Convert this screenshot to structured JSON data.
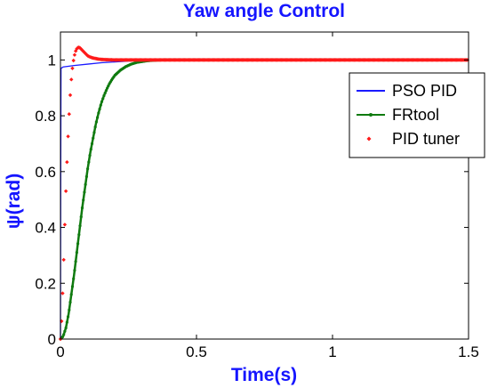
{
  "colors": {
    "title": "#1515ff",
    "axis_label": "#1515ff",
    "pso": "#1a1aff",
    "frtool": "#0f7a0f",
    "pid": "#ff1a1a"
  },
  "chart_data": {
    "type": "line",
    "title": "Yaw angle Control",
    "xlabel": "Time(s)",
    "ylabel": "ψ(rad)",
    "xlim": [
      0,
      1.5
    ],
    "ylim": [
      0,
      1.1
    ],
    "xticks": [
      "0",
      "0.5",
      "1",
      "1.5"
    ],
    "yticks": [
      "0",
      "0.2",
      "0.4",
      "0.6",
      "0.8",
      "1"
    ],
    "grid": false,
    "legend_position": "top-right",
    "series": [
      {
        "name": "PSO PID",
        "style": "line",
        "x": [
          0,
          0.001,
          0.002,
          0.01,
          0.05,
          0.1,
          0.15,
          0.2,
          0.25,
          0.3,
          0.32,
          0.35,
          0.4,
          0.5,
          0.6,
          0.8,
          1.0,
          1.2,
          1.5
        ],
        "y": [
          0,
          0.6,
          0.97,
          0.975,
          0.98,
          0.985,
          0.99,
          0.993,
          0.996,
          0.999,
          1.0,
          1.0,
          1.0,
          1.0,
          1.0,
          1.0,
          1.0,
          1.0,
          1.0
        ]
      },
      {
        "name": "FRtool",
        "style": "line-dots",
        "x": [
          0,
          0.01,
          0.02,
          0.03,
          0.04,
          0.05,
          0.06,
          0.07,
          0.08,
          0.09,
          0.1,
          0.11,
          0.12,
          0.13,
          0.14,
          0.15,
          0.16,
          0.17,
          0.18,
          0.19,
          0.2,
          0.22,
          0.24,
          0.26,
          0.28,
          0.3,
          0.32,
          0.35,
          0.38,
          0.42,
          0.46,
          0.5,
          0.6,
          0.7,
          0.8,
          0.9,
          1.0,
          1.1,
          1.2,
          1.3,
          1.4,
          1.5
        ],
        "y": [
          0,
          0.01,
          0.04,
          0.09,
          0.16,
          0.23,
          0.31,
          0.39,
          0.47,
          0.54,
          0.61,
          0.67,
          0.72,
          0.77,
          0.81,
          0.845,
          0.872,
          0.895,
          0.915,
          0.931,
          0.945,
          0.963,
          0.976,
          0.985,
          0.991,
          0.994,
          0.997,
          0.999,
          1.0,
          1.0,
          1.0,
          1.0,
          1.0,
          1.0,
          1.0,
          1.0,
          1.0,
          1.0,
          1.0,
          1.0,
          1.0,
          1.0
        ]
      },
      {
        "name": "PID tuner",
        "style": "markers",
        "x": [
          0,
          0.005,
          0.01,
          0.015,
          0.02,
          0.025,
          0.03,
          0.035,
          0.04,
          0.045,
          0.05,
          0.055,
          0.06,
          0.065,
          0.07,
          0.075,
          0.08,
          0.085,
          0.09,
          0.095,
          0.1,
          0.11,
          0.12,
          0.13,
          0.14,
          0.15,
          0.17,
          0.2,
          0.25,
          0.3,
          0.4,
          0.5,
          0.6,
          0.8,
          1.0,
          1.2,
          1.4,
          1.5
        ],
        "y": [
          0,
          0.08,
          0.22,
          0.38,
          0.53,
          0.66,
          0.77,
          0.86,
          0.93,
          0.98,
          1.01,
          1.03,
          1.04,
          1.045,
          1.045,
          1.04,
          1.035,
          1.03,
          1.025,
          1.02,
          1.015,
          1.01,
          1.007,
          1.005,
          1.003,
          1.002,
          1.001,
          1.0,
          1.0,
          1.0,
          1.0,
          1.0,
          1.0,
          1.0,
          1.0,
          1.0,
          1.0,
          1.0
        ]
      }
    ]
  }
}
